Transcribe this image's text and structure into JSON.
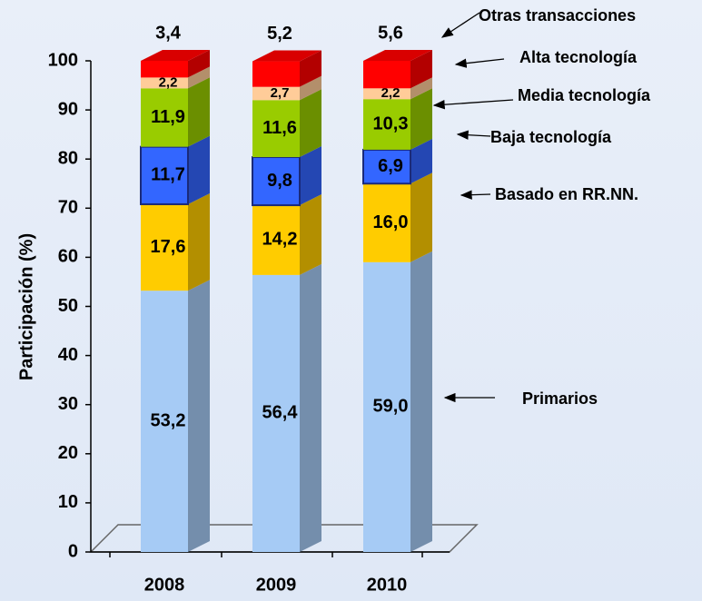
{
  "chart_data": {
    "type": "bar3d_stacked",
    "ylabel": "Participación (%)",
    "categories": [
      "2008",
      "2009",
      "2010"
    ],
    "series": [
      {
        "name": "Primarios",
        "color": "#a6cbf5",
        "values": [
          53.2,
          56.4,
          59.0
        ],
        "value_labels": [
          "53,2",
          "56,4",
          "59,0"
        ]
      },
      {
        "name": "Basado en RR.NN.",
        "color": "#ffcc00",
        "values": [
          17.6,
          14.2,
          16.0
        ],
        "value_labels": [
          "17,6",
          "14,2",
          "16,0"
        ]
      },
      {
        "name": "Baja tecnología",
        "color": "#3366ff",
        "values": [
          11.7,
          9.8,
          6.9
        ],
        "value_labels": [
          "11,7",
          "9,8",
          "6,9"
        ]
      },
      {
        "name": "Media tecnología",
        "color": "#99cc00",
        "values": [
          11.9,
          11.6,
          10.3
        ],
        "value_labels": [
          "11,9",
          "11,6",
          "10,3"
        ]
      },
      {
        "name": "Alta tecnología",
        "color": "#ffcc99",
        "values": [
          2.2,
          2.7,
          2.2
        ],
        "value_labels": [
          "2,2",
          "2,7",
          "2,2"
        ]
      },
      {
        "name": "Otras transacciones",
        "color": "#ff0000",
        "values": [
          3.4,
          5.2,
          5.6
        ],
        "value_labels": [
          "3,4",
          "5,2",
          "5,6"
        ]
      }
    ],
    "ylim": [
      0,
      100
    ],
    "yticks": [
      0,
      10,
      20,
      30,
      40,
      50,
      60,
      70,
      80,
      90,
      100
    ]
  }
}
